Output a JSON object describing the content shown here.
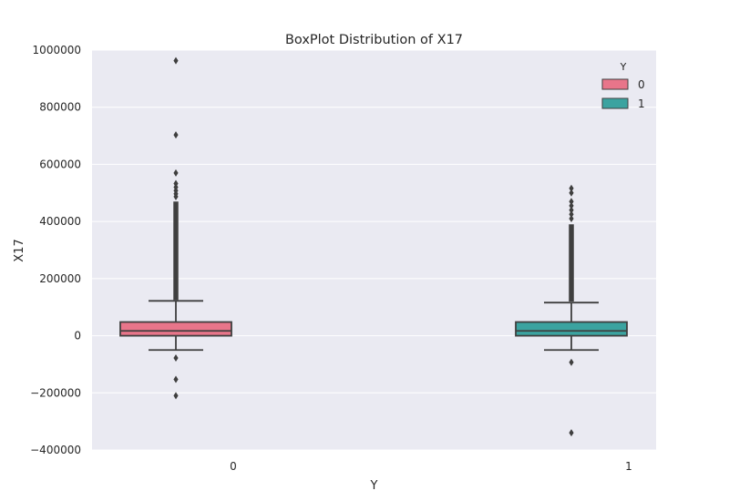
{
  "chart_data": {
    "type": "boxplot",
    "title": "BoxPlot Distribution of X17",
    "xlabel": "Y",
    "ylabel": "X17",
    "ylim": [
      -400000,
      1000000
    ],
    "yticks": [
      -400000,
      -200000,
      0,
      200000,
      400000,
      600000,
      800000,
      1000000
    ],
    "ytick_labels": [
      "−400000",
      "−200000",
      "0",
      "200000",
      "400000",
      "600000",
      "800000",
      "1000000"
    ],
    "categories": [
      "0",
      "1"
    ],
    "grid": true,
    "legend": {
      "title": "Y",
      "placement": "top-right",
      "entries": [
        {
          "label": "0",
          "color": "#e8758a"
        },
        {
          "label": "1",
          "color": "#3ba3a0"
        }
      ]
    },
    "series": [
      {
        "category": "0",
        "color": "#e8758a",
        "whisker_low": -50000,
        "q1": 0,
        "median": 17000,
        "q3": 48000,
        "whisker_high": 122000,
        "outlier_dense_range": [
          125000,
          470000
        ],
        "outliers": [
          963000,
          703000,
          570000,
          533000,
          520000,
          508000,
          497000,
          487000,
          -78000,
          -153000,
          -210000
        ]
      },
      {
        "category": "1",
        "color": "#3ba3a0",
        "whisker_low": -50000,
        "q1": 0,
        "median": 17000,
        "q3": 48000,
        "whisker_high": 116000,
        "outlier_dense_range": [
          120000,
          390000
        ],
        "outliers": [
          516000,
          500000,
          470000,
          455000,
          440000,
          425000,
          410000,
          -93000,
          -340000
        ]
      }
    ]
  }
}
